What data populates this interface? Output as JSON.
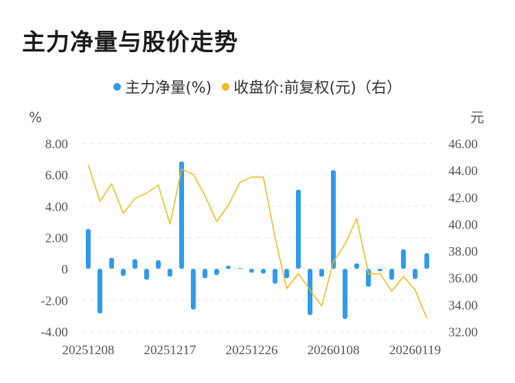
{
  "title": "主力净量与股价走势",
  "legend": {
    "series1": "主力净量(%)",
    "series2": "收盘价:前复权(元)（右）",
    "color1": "#2f9bea",
    "color2": "#f2b920"
  },
  "chart_data": {
    "type": "bar+line",
    "title": "主力净量与股价走势",
    "y_left_unit": "%",
    "y_right_unit": "元",
    "y_left_ticks": [
      "8.00",
      "6.00",
      "4.00",
      "2.00",
      "0",
      "-2.00",
      "-4.00"
    ],
    "y_right_ticks": [
      "46.00",
      "44.00",
      "42.00",
      "40.00",
      "38.00",
      "36.00",
      "34.00",
      "32.00"
    ],
    "y_left_range": [
      -4,
      8
    ],
    "y_right_range": [
      32,
      46
    ],
    "x_tick_labels": [
      "20251208",
      "20251217",
      "20251226",
      "20260108",
      "20260119"
    ],
    "x_tick_indices": [
      0,
      7,
      14,
      21,
      28
    ],
    "grid": true,
    "series": [
      {
        "name": "主力净量(%)",
        "type": "bar",
        "color": "#2f9bea",
        "values": [
          2.55,
          -2.85,
          0.7,
          -0.45,
          0.62,
          -0.7,
          0.55,
          -0.5,
          6.85,
          -2.6,
          -0.6,
          -0.4,
          0.2,
          0.05,
          -0.25,
          -0.3,
          -0.95,
          -0.6,
          5.05,
          -2.95,
          -0.5,
          6.3,
          -3.2,
          0.35,
          -1.15,
          -0.15,
          -0.7,
          1.25,
          -0.65,
          1.0
        ]
      },
      {
        "name": "收盘价:前复权(元)（右）",
        "type": "line",
        "color": "#f2b920",
        "values": [
          44.4,
          41.7,
          43.0,
          40.8,
          41.9,
          42.3,
          42.9,
          40.0,
          44.1,
          43.7,
          42.1,
          40.2,
          41.4,
          43.1,
          43.5,
          43.5,
          39.0,
          35.2,
          36.3,
          35.1,
          33.9,
          37.2,
          38.5,
          40.4,
          36.3,
          36.3,
          35.0,
          36.1,
          35.1,
          33.0
        ]
      }
    ]
  }
}
